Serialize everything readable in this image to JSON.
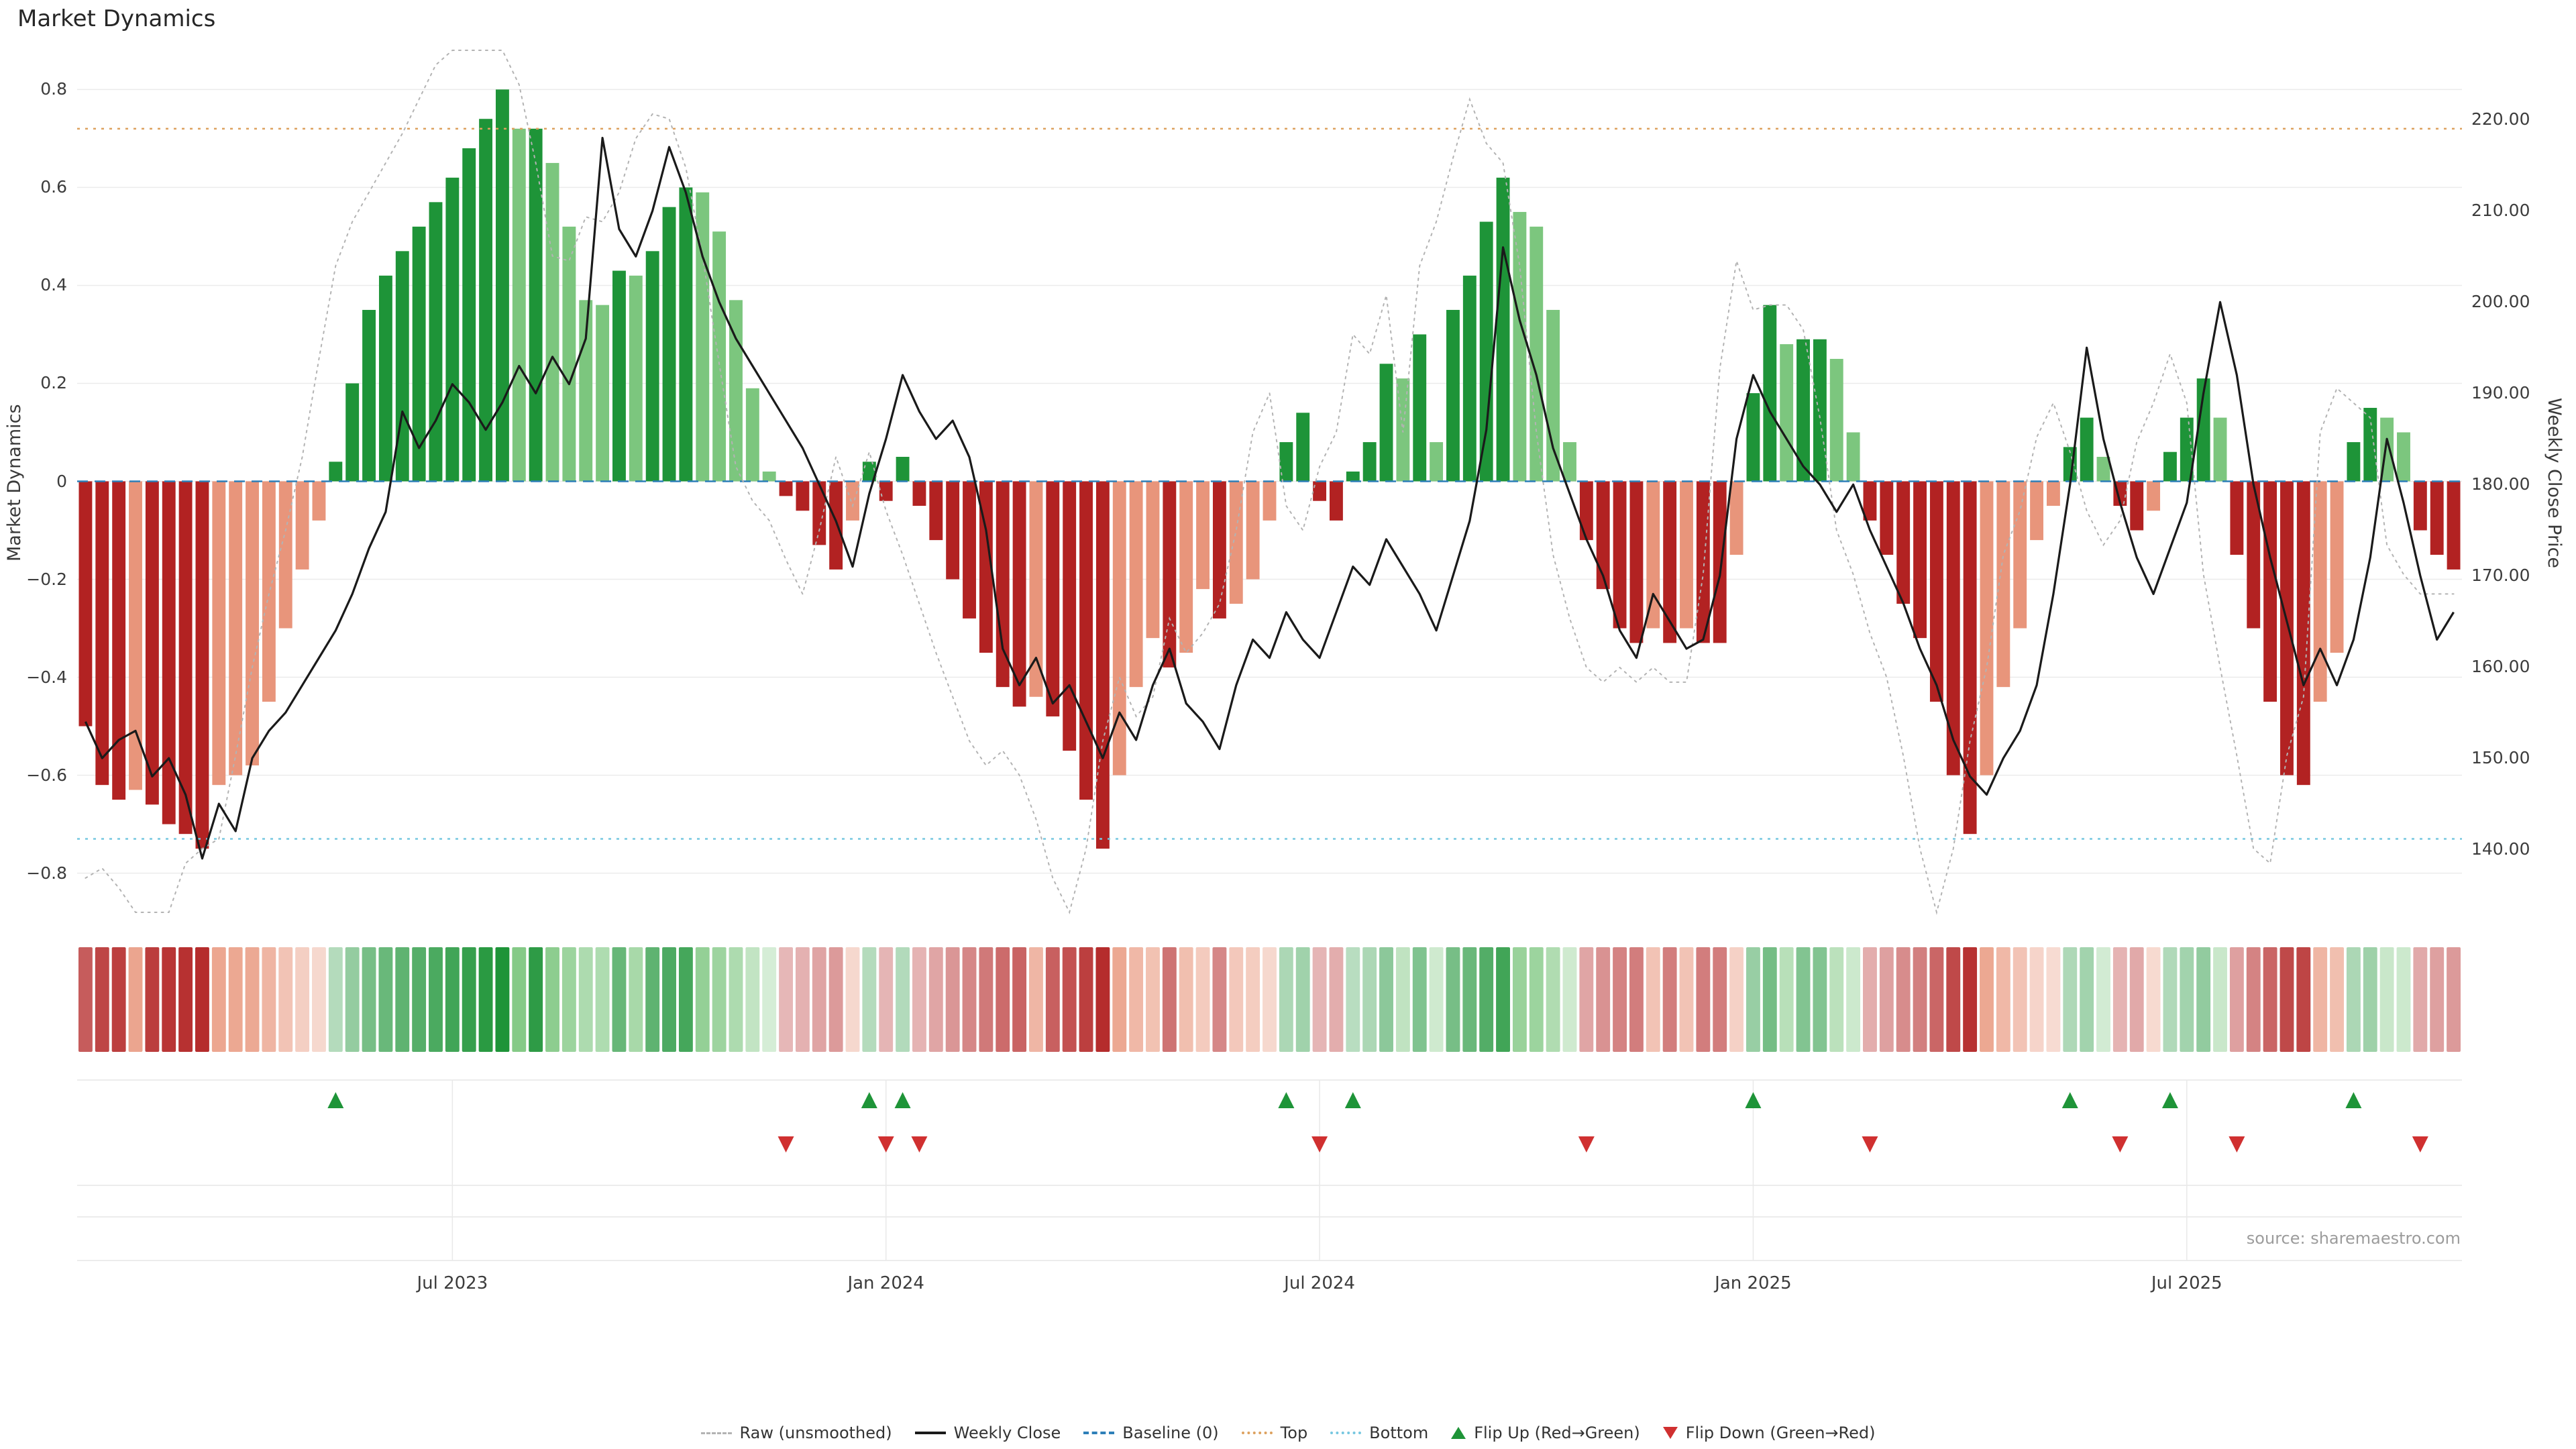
{
  "title": "Market Dynamics",
  "source_note": "source: sharemaestro.com",
  "axes": {
    "left_title": "Market Dynamics",
    "right_title": "Weekly Close Price",
    "left_ticks": [
      {
        "label": "0.8",
        "v": 0.8
      },
      {
        "label": "0.6",
        "v": 0.6
      },
      {
        "label": "0.4",
        "v": 0.4
      },
      {
        "label": "0.2",
        "v": 0.2
      },
      {
        "label": "0",
        "v": 0
      },
      {
        "label": "−0.2",
        "v": -0.2
      },
      {
        "label": "−0.4",
        "v": -0.4
      },
      {
        "label": "−0.6",
        "v": -0.6
      },
      {
        "label": "−0.8",
        "v": -0.8
      }
    ],
    "right_ticks": [
      {
        "label": "220.00",
        "v": 220
      },
      {
        "label": "210.00",
        "v": 210
      },
      {
        "label": "200.00",
        "v": 200
      },
      {
        "label": "190.00",
        "v": 190
      },
      {
        "label": "180.00",
        "v": 180
      },
      {
        "label": "170.00",
        "v": 170
      },
      {
        "label": "160.00",
        "v": 160
      },
      {
        "label": "150.00",
        "v": 150
      },
      {
        "label": "140.00",
        "v": 140
      }
    ],
    "x_ticks": [
      {
        "label": "Jul 2023",
        "i": 22
      },
      {
        "label": "Jan 2024",
        "i": 48
      },
      {
        "label": "Jul 2024",
        "i": 74
      },
      {
        "label": "Jan 2025",
        "i": 100
      },
      {
        "label": "Jul 2025",
        "i": 126
      }
    ]
  },
  "legend": {
    "raw": "Raw (unsmoothed)",
    "close": "Weekly Close",
    "baseline": "Baseline (0)",
    "top": "Top",
    "bottom": "Bottom",
    "flip_up": "Flip Up (Red→Green)",
    "flip_down": "Flip Down (Green→Red)"
  },
  "colors": {
    "dark_green": "#1e9438",
    "light_green": "#7cc67e",
    "dark_red": "#b22222",
    "light_red": "#e8957b",
    "baseline": "#2d7fb8",
    "top": "#dda15e",
    "bottom": "#76c7e0",
    "raw": "#b3b3b3",
    "close": "#1a1a1a",
    "grid": "#ebebeb",
    "flip_up": "#1e9438",
    "flip_down": "#d03030"
  },
  "chart_data": {
    "type": "bar",
    "subtype": "combo bar+line, dual axis, weekly",
    "title": "Market Dynamics",
    "ylabel": "Market Dynamics",
    "y2label": "Weekly Close Price",
    "ylim": [
      -0.8,
      0.8
    ],
    "y2lim": [
      140,
      220
    ],
    "baseline": 0,
    "top_threshold": 0.72,
    "bottom_threshold": -0.73,
    "start_date": "2023-02-03",
    "frequency": "weekly",
    "x_tick_labels": [
      "Jul 2023",
      "Jan 2024",
      "Jul 2024",
      "Jan 2025",
      "Jul 2025"
    ],
    "legend_position": "bottom center",
    "grid": "horizontal only",
    "series": [
      {
        "name": "Market Dynamics (smoothed)",
        "type": "bar",
        "axis": "left",
        "values": [
          -0.5,
          -0.62,
          -0.65,
          -0.63,
          -0.66,
          -0.7,
          -0.72,
          -0.75,
          -0.62,
          -0.6,
          -0.58,
          -0.45,
          -0.3,
          -0.18,
          -0.08,
          0.04,
          0.2,
          0.35,
          0.42,
          0.47,
          0.52,
          0.57,
          0.62,
          0.68,
          0.74,
          0.8,
          0.72,
          0.72,
          0.65,
          0.52,
          0.37,
          0.36,
          0.43,
          0.42,
          0.47,
          0.56,
          0.6,
          0.59,
          0.51,
          0.37,
          0.19,
          0.02,
          -0.03,
          -0.06,
          -0.13,
          -0.18,
          -0.08,
          0.04,
          -0.04,
          0.05,
          -0.05,
          -0.12,
          -0.2,
          -0.28,
          -0.35,
          -0.42,
          -0.46,
          -0.44,
          -0.48,
          -0.55,
          -0.65,
          -0.75,
          -0.6,
          -0.42,
          -0.32,
          -0.38,
          -0.35,
          -0.22,
          -0.28,
          -0.25,
          -0.2,
          -0.08,
          0.08,
          0.14,
          -0.04,
          -0.08,
          0.02,
          0.08,
          0.24,
          0.21,
          0.3,
          0.08,
          0.35,
          0.42,
          0.53,
          0.62,
          0.55,
          0.52,
          0.35,
          0.08,
          -0.12,
          -0.22,
          -0.3,
          -0.33,
          -0.3,
          -0.33,
          -0.3,
          -0.33,
          -0.33,
          -0.15,
          0.18,
          0.36,
          0.28,
          0.29,
          0.29,
          0.25,
          0.1,
          -0.08,
          -0.15,
          -0.25,
          -0.32,
          -0.45,
          -0.6,
          -0.72,
          -0.6,
          -0.42,
          -0.3,
          -0.12,
          -0.05,
          0.07,
          0.13,
          0.05,
          -0.05,
          -0.1,
          -0.06,
          0.06,
          0.13,
          0.21,
          0.13,
          -0.15,
          -0.3,
          -0.45,
          -0.6,
          -0.62,
          -0.45,
          -0.35,
          0.08,
          0.15,
          0.13,
          0.1,
          -0.1,
          -0.15,
          -0.18
        ]
      },
      {
        "name": "Raw (unsmoothed)",
        "type": "line",
        "axis": "left",
        "style": "dotted gray",
        "values": [
          -0.81,
          -0.79,
          -0.83,
          -0.88,
          -0.88,
          -0.88,
          -0.78,
          -0.75,
          -0.73,
          -0.56,
          -0.38,
          -0.23,
          -0.1,
          0.05,
          0.25,
          0.44,
          0.53,
          0.59,
          0.65,
          0.71,
          0.78,
          0.85,
          0.88,
          0.88,
          0.88,
          0.88,
          0.81,
          0.65,
          0.46,
          0.45,
          0.54,
          0.53,
          0.59,
          0.7,
          0.75,
          0.74,
          0.64,
          0.46,
          0.24,
          0.03,
          -0.04,
          -0.08,
          -0.16,
          -0.23,
          -0.1,
          0.05,
          -0.05,
          0.06,
          -0.06,
          -0.15,
          -0.25,
          -0.35,
          -0.44,
          -0.53,
          -0.58,
          -0.55,
          -0.6,
          -0.69,
          -0.81,
          -0.88,
          -0.75,
          -0.53,
          -0.4,
          -0.48,
          -0.44,
          -0.28,
          -0.35,
          -0.31,
          -0.25,
          -0.1,
          0.1,
          0.18,
          -0.05,
          -0.1,
          0.03,
          0.1,
          0.3,
          0.26,
          0.38,
          0.1,
          0.44,
          0.53,
          0.66,
          0.78,
          0.69,
          0.65,
          0.44,
          0.1,
          -0.15,
          -0.28,
          -0.38,
          -0.41,
          -0.38,
          -0.41,
          -0.38,
          -0.41,
          -0.41,
          -0.19,
          0.23,
          0.45,
          0.35,
          0.36,
          0.36,
          0.31,
          0.13,
          -0.1,
          -0.19,
          -0.31,
          -0.4,
          -0.56,
          -0.75,
          -0.88,
          -0.75,
          -0.53,
          -0.38,
          -0.15,
          -0.06,
          0.09,
          0.16,
          0.06,
          -0.06,
          -0.13,
          -0.08,
          0.08,
          0.16,
          0.26,
          0.16,
          -0.19,
          -0.38,
          -0.56,
          -0.75,
          -0.78,
          -0.56,
          -0.44,
          0.1,
          0.19,
          0.16,
          0.13,
          -0.13,
          -0.19,
          -0.23,
          -0.23,
          -0.23
        ]
      },
      {
        "name": "Weekly Close",
        "type": "line",
        "axis": "right",
        "style": "solid black",
        "values": [
          154,
          150,
          152,
          153,
          148,
          150,
          146,
          139,
          145,
          142,
          150,
          153,
          155,
          158,
          161,
          164,
          168,
          173,
          177,
          188,
          184,
          187,
          191,
          189,
          186,
          189,
          193,
          190,
          194,
          191,
          196,
          218,
          208,
          205,
          210,
          217,
          212,
          205,
          200,
          196,
          193,
          190,
          187,
          184,
          180,
          176,
          171,
          179,
          185,
          192,
          188,
          185,
          187,
          183,
          175,
          162,
          158,
          161,
          156,
          158,
          154,
          150,
          155,
          152,
          158,
          162,
          156,
          154,
          151,
          158,
          163,
          161,
          166,
          163,
          161,
          166,
          171,
          169,
          174,
          171,
          168,
          164,
          170,
          176,
          186,
          206,
          198,
          192,
          184,
          179,
          174,
          170,
          164,
          161,
          168,
          165,
          162,
          163,
          170,
          185,
          192,
          188,
          185,
          182,
          180,
          177,
          180,
          175,
          171,
          167,
          162,
          158,
          152,
          148,
          146,
          150,
          153,
          158,
          168,
          180,
          195,
          185,
          178,
          172,
          168,
          173,
          178,
          190,
          200,
          192,
          180,
          172,
          165,
          158,
          162,
          158,
          163,
          172,
          185,
          178,
          170,
          163,
          166
        ]
      }
    ],
    "markers": {
      "flip_up_rule": "bar value crosses from negative to positive",
      "flip_down_rule": "bar value crosses from positive to negative"
    }
  }
}
